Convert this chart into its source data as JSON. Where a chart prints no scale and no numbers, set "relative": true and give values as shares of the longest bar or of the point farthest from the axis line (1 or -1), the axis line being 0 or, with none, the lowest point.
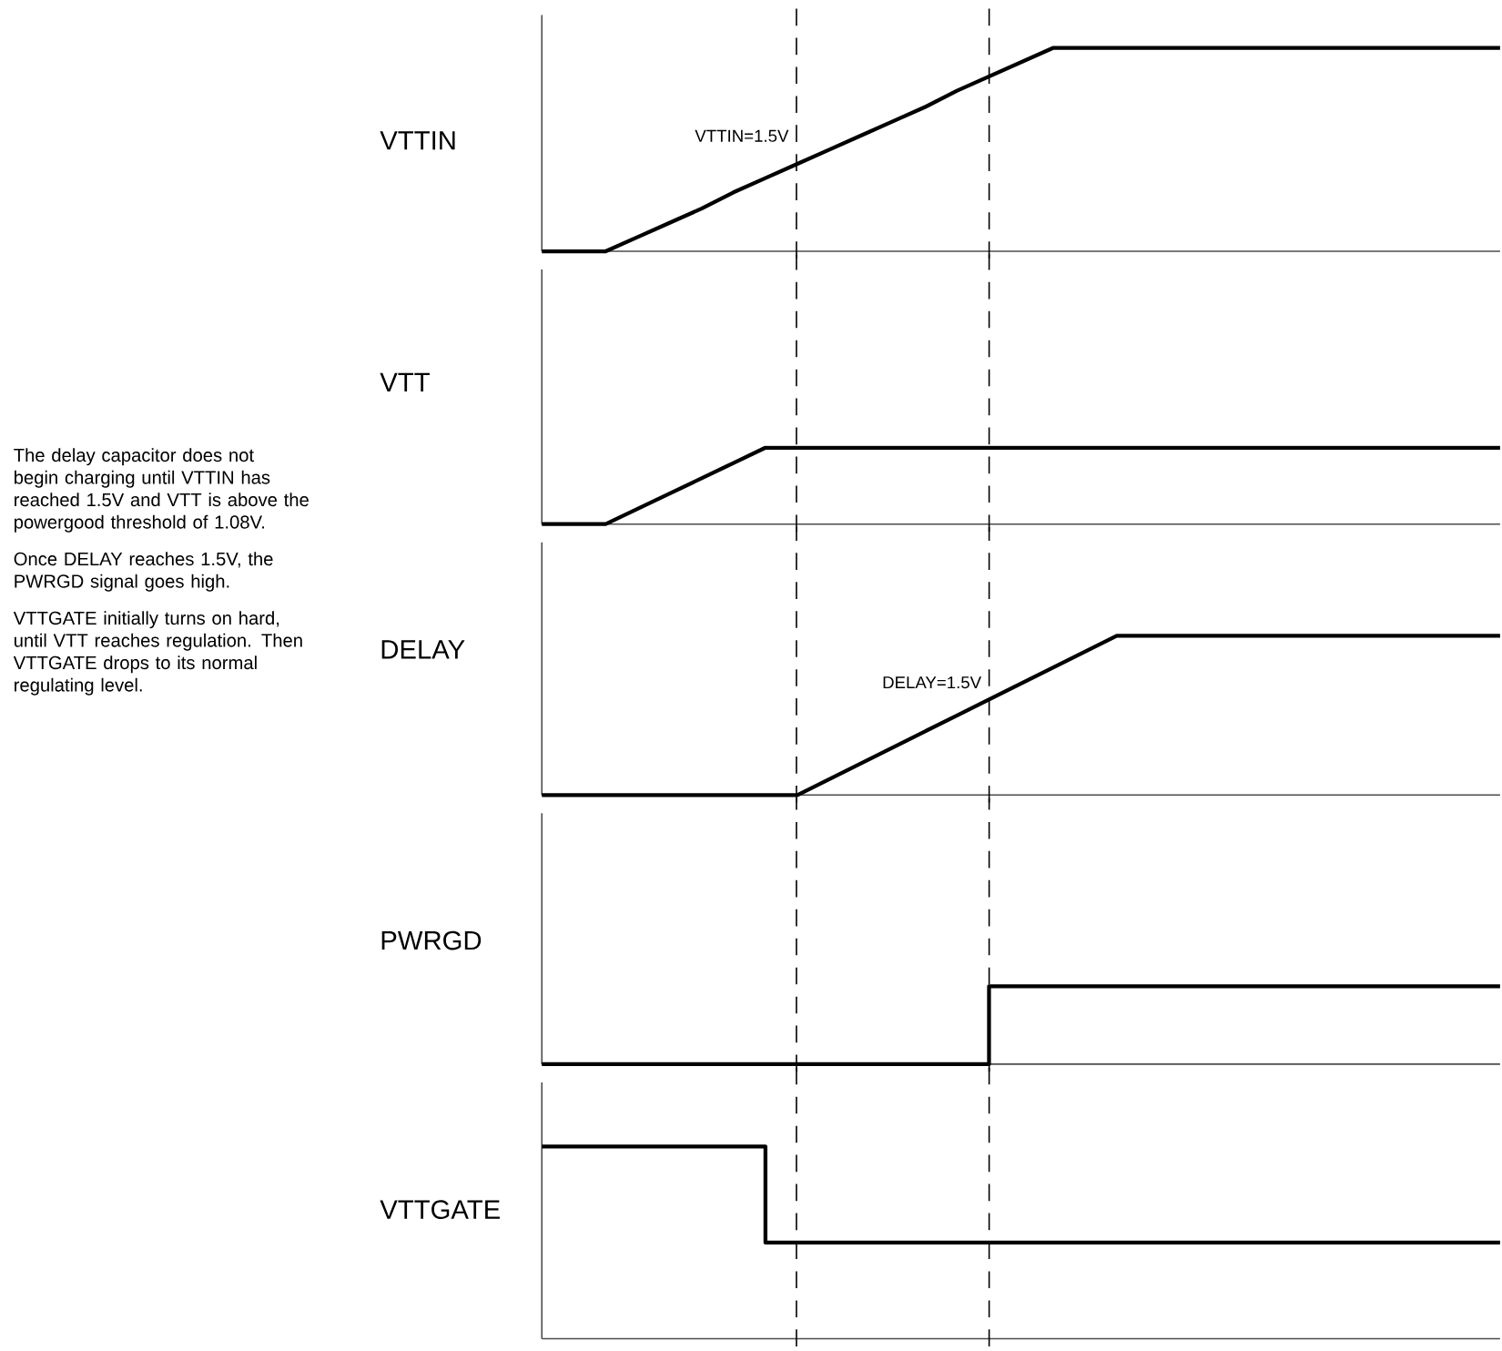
{
  "chart_data": [
    {
      "type": "line",
      "relative": true,
      "ylabel": "VTTIN",
      "categories": [
        null,
        null,
        null,
        null,
        null,
        null,
        null,
        null,
        null,
        null,
        null,
        null,
        null,
        null,
        null,
        null,
        null,
        null,
        null,
        null,
        null,
        null,
        null,
        null,
        null,
        null,
        null,
        null,
        null,
        null,
        null
      ],
      "color": "#000000",
      "values": [
        0,
        0,
        0,
        0.07,
        0.14,
        0.21,
        0.29,
        0.36,
        0.43,
        0.5,
        0.57,
        0.64,
        0.71,
        0.79,
        0.86,
        0.93,
        1,
        1,
        1,
        1,
        1,
        1,
        1,
        1,
        1,
        1,
        1,
        1,
        1,
        1,
        1
      ],
      "annotations": [
        "VTTIN=1.5V"
      ]
    },
    {
      "type": "line",
      "relative": true,
      "ylabel": "VTT",
      "categories": [
        null,
        null,
        null,
        null,
        null,
        null,
        null,
        null,
        null,
        null,
        null,
        null,
        null,
        null,
        null,
        null,
        null,
        null,
        null,
        null,
        null,
        null,
        null,
        null,
        null,
        null,
        null,
        null,
        null,
        null,
        null
      ],
      "color": "#000000",
      "values": [
        0,
        0,
        0,
        0.2,
        0.4,
        0.6,
        0.8,
        1,
        1,
        1,
        1,
        1,
        1,
        1,
        1,
        1,
        1,
        1,
        1,
        1,
        1,
        1,
        1,
        1,
        1,
        1,
        1,
        1,
        1,
        1,
        1
      ],
      "annotations": [
        "The delay capacitor does not begin charging until VTTIN has reached 1.5V and VTT is above the powergood threshold of 1.08V.",
        "Once DELAY reaches 1.5V, the PWRGD signal goes high.",
        "VTTGATE initially turns on hard, until VTT reaches regulation.  Then VTTGATE drops to its normal regulating level."
      ]
    },
    {
      "type": "line",
      "relative": true,
      "ylabel": "DELAY",
      "categories": [
        null,
        null,
        null,
        null,
        null,
        null,
        null,
        null,
        null,
        null,
        null,
        null,
        null,
        null,
        null,
        null,
        null,
        null,
        null,
        null,
        null,
        null,
        null,
        null,
        null,
        null,
        null,
        null,
        null,
        null,
        null
      ],
      "color": "#000000",
      "values": [
        0,
        0,
        0,
        0,
        0,
        0,
        0,
        0,
        0,
        0.1,
        0.2,
        0.3,
        0.4,
        0.5,
        0.6,
        0.7,
        0.8,
        0.9,
        1,
        1,
        1,
        1,
        1,
        1,
        1,
        1,
        1,
        1,
        1,
        1,
        1
      ],
      "annotations": [
        "DELAY=1.5V"
      ]
    },
    {
      "type": "step",
      "relative": true,
      "ylabel": "PWRGD",
      "categories": [
        null,
        null,
        null,
        null,
        null,
        null,
        null,
        null,
        null,
        null,
        null,
        null,
        null,
        null,
        null,
        null,
        null,
        null,
        null,
        null,
        null,
        null,
        null,
        null,
        null,
        null,
        null,
        null,
        null,
        null,
        null
      ],
      "color": "#000000",
      "values": [
        0,
        0,
        0,
        0,
        0,
        0,
        0,
        0,
        0,
        0,
        0,
        0,
        0,
        0,
        1,
        1,
        1,
        1,
        1,
        1,
        1,
        1,
        1,
        1,
        1,
        1,
        1,
        1,
        1,
        1,
        1
      ]
    },
    {
      "type": "step",
      "relative": true,
      "ylabel": "VTTGATE",
      "categories": [
        null,
        null,
        null,
        null,
        null,
        null,
        null,
        null,
        null,
        null,
        null,
        null,
        null,
        null,
        null,
        null,
        null,
        null,
        null,
        null,
        null,
        null,
        null,
        null,
        null,
        null,
        null,
        null,
        null,
        null,
        null
      ],
      "color": "#000000",
      "values": [
        1,
        1,
        1,
        1,
        1,
        1,
        1,
        0.5,
        0.5,
        0.5,
        0.5,
        0.5,
        0.5,
        0.5,
        0.5,
        0.5,
        0.5,
        0.5,
        0.5,
        0.5,
        0.5,
        0.5,
        0.5,
        0.5,
        0.5,
        0.5,
        0.5,
        0.5,
        0.5,
        0.5,
        0.5
      ]
    }
  ]
}
